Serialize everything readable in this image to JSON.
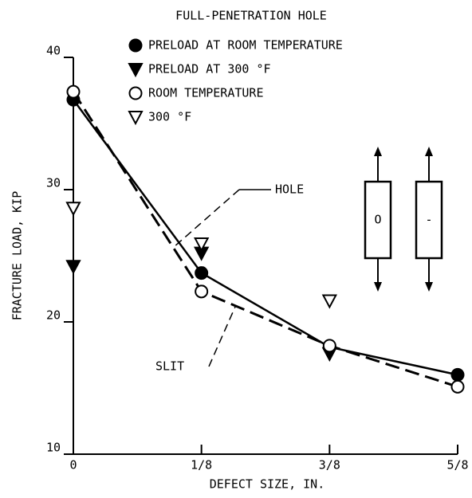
{
  "chart_data": {
    "type": "line",
    "title": "FULL-PENETRATION HOLE",
    "x_label": "DEFECT SIZE, IN.",
    "y_label": "FRACTURE LOAD, KIP",
    "categories": [
      "0",
      "1/8",
      "3/8",
      "5/8"
    ],
    "ylim": [
      10,
      40
    ],
    "yticks": [
      10,
      20,
      30,
      40
    ],
    "series": [
      {
        "name": "PRELOAD AT ROOM TEMPERATURE",
        "color": "#000000",
        "marker": "circle",
        "filled": true,
        "line": "solid",
        "values": [
          36.8,
          23.7,
          18.1,
          16.0
        ]
      },
      {
        "name": "PRELOAD AT 300 °F",
        "color": "#000000",
        "marker": "triangle-down",
        "filled": true,
        "values": [
          24.2,
          25.2,
          17.6,
          null
        ]
      },
      {
        "name": "ROOM TEMPERATURE",
        "color": "#000000",
        "marker": "circle",
        "filled": false,
        "line": "dashed",
        "values": [
          37.4,
          22.3,
          18.2,
          15.1
        ]
      },
      {
        "name": "300 °F",
        "color": "#000000",
        "marker": "triangle-down",
        "filled": false,
        "values": [
          28.6,
          25.9,
          21.6,
          null
        ]
      }
    ],
    "annotations": [
      "HOLE",
      "SLIT",
      "O",
      "-"
    ]
  }
}
